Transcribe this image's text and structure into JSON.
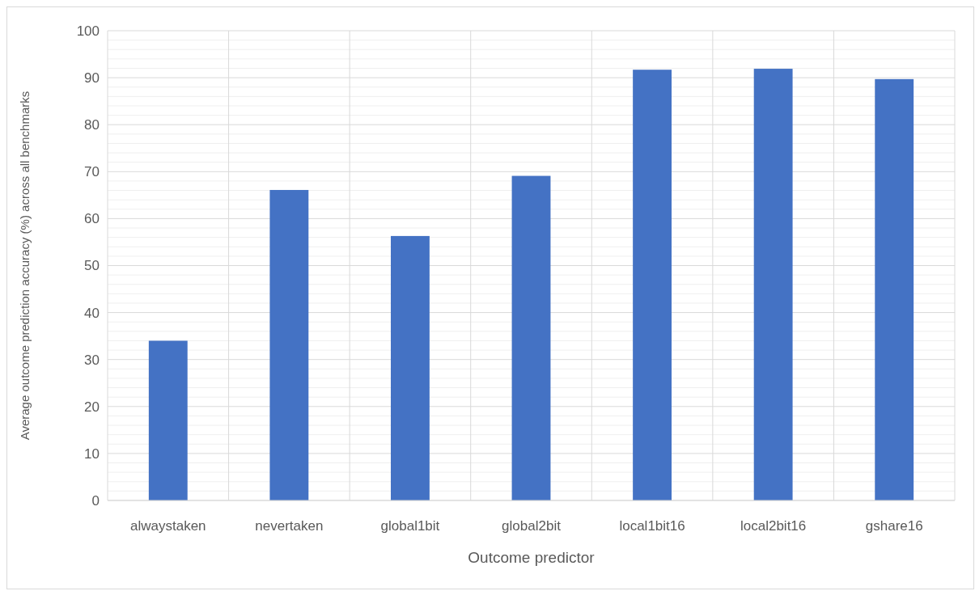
{
  "chart_data": {
    "type": "bar",
    "xlabel": "Outcome predictor",
    "ylabel": "Average outcome prediction accuracy (%) across all benchmarks",
    "categories": [
      "alwaystaken",
      "nevertaken",
      "global1bit",
      "global2bit",
      "local1bit16",
      "local2bit16",
      "gshare16"
    ],
    "values": [
      34,
      66.1,
      56.3,
      69.1,
      91.7,
      91.9,
      89.7
    ],
    "color": "#4472c4",
    "ylim": [
      0,
      100
    ],
    "yticks": [
      0,
      10,
      20,
      30,
      40,
      50,
      60,
      70,
      80,
      90,
      100
    ],
    "grid": true
  }
}
